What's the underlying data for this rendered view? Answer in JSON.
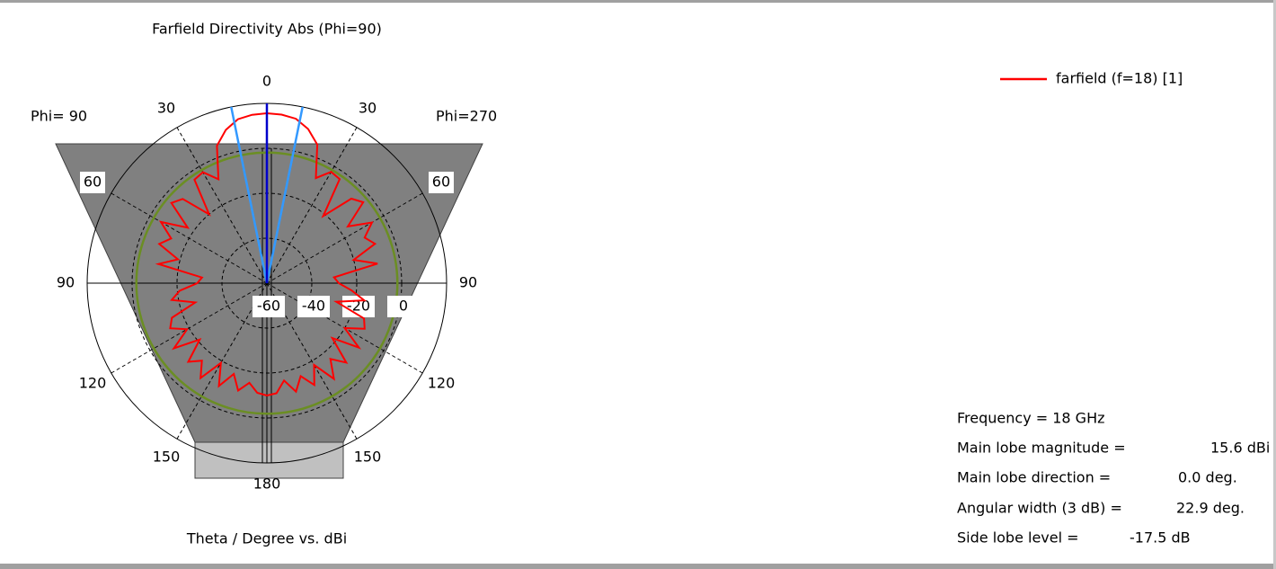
{
  "chart_data": {
    "type": "polar",
    "title": "Farfield Directivity Abs (Phi=90)",
    "axis_label": "Theta / Degree vs. dBi",
    "left_label": "Phi= 90",
    "right_label": "Phi=270",
    "angle_ticks": [
      0,
      30,
      60,
      90,
      120,
      150,
      180
    ],
    "rlim": [
      -60,
      20
    ],
    "rticks": [
      -60,
      -40,
      -20,
      0
    ],
    "x": [
      -180,
      -175,
      -170,
      -165,
      -160,
      -155,
      -150,
      -145,
      -140,
      -135,
      -130,
      -125,
      -120,
      -115,
      -110,
      -105,
      -100,
      -95,
      -90,
      -85,
      -80,
      -75,
      -70,
      -65,
      -60,
      -55,
      -50,
      -45,
      -40,
      -35,
      -30,
      -25,
      -20,
      -15,
      -10,
      -5,
      0,
      5,
      10,
      15,
      20,
      25,
      30,
      35,
      40,
      45,
      50,
      55,
      60,
      65,
      70,
      75,
      80,
      85,
      90,
      95,
      100,
      105,
      110,
      115,
      120,
      125,
      130,
      135,
      140,
      145,
      150,
      155,
      160,
      165,
      170,
      175,
      180
    ],
    "series": [
      {
        "name": "farfield (f=18) [1]",
        "color": "#ff0000",
        "values": [
          -10,
          -11,
          -15,
          -10.5,
          -17,
          -9.5,
          -19,
          -8.5,
          -15,
          -10.5,
          -21,
          -9.5,
          -19,
          -12.5,
          -15,
          -27,
          -17,
          -21,
          -29,
          -31,
          -11,
          -19,
          -9,
          -13,
          -5.5,
          -17,
          -4.5,
          -7,
          -20,
          -3.8,
          -3,
          -9,
          5,
          10.6,
          14.1,
          15.2,
          15.6,
          15.3,
          14.3,
          11,
          5.6,
          -8.4,
          -2.8,
          -3.5,
          -21,
          -6.8,
          -4,
          -16,
          -6,
          -12,
          -8.8,
          -20,
          -10,
          -30,
          -28,
          -22,
          -16,
          -28,
          -14,
          -12,
          -20,
          -10,
          -22,
          -10,
          -16,
          -8,
          -18,
          -10,
          -16,
          -10,
          -16,
          -10.8,
          -10
        ]
      }
    ],
    "frequency": "Frequency = 18 GHz",
    "main_lobe_magnitude": {
      "name": "Main lobe magnitude =",
      "value": 15.6,
      "label": "15.6 dBi"
    },
    "main_lobe_direction": {
      "name": "Main lobe direction =",
      "value": 0,
      "label": "0.0 deg."
    },
    "angular_width": {
      "name": "Angular width (3 dB) =",
      "value": 22.9,
      "label": "22.9 deg."
    },
    "side_lobe_level": {
      "name": "Side lobe level =",
      "value": -17.5,
      "label": "-17.5 dB"
    }
  }
}
